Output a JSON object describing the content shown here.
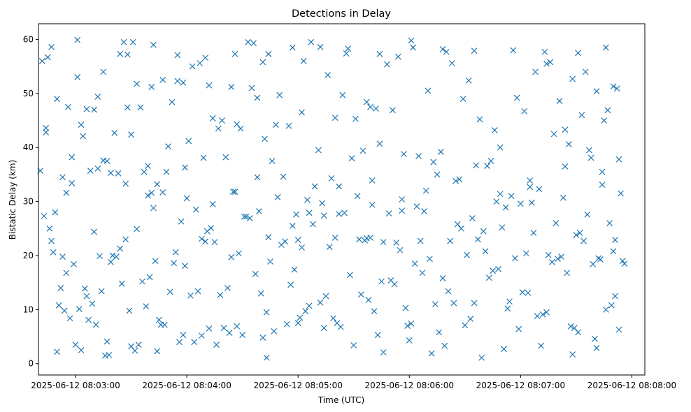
{
  "chart_data": {
    "type": "scatter",
    "title": "Detections in Delay",
    "xlabel": "Time (UTC)",
    "ylabel": "Bistatic Delay (km)",
    "x_ticks": [
      "2025-06-12 08:03:00",
      "2025-06-12 08:04:00",
      "2025-06-12 08:05:00",
      "2025-06-12 08:06:00",
      "2025-06-12 08:07:00",
      "2025-06-12 08:08:00"
    ],
    "y_ticks": [
      "0",
      "10",
      "20",
      "30",
      "40",
      "50",
      "60"
    ],
    "xlim": [
      "2025-06-12 08:02:40",
      "2025-06-12 08:08:07"
    ],
    "ylim": [
      -2.1,
      62.9
    ],
    "grid": false,
    "marker": "x",
    "series_color": "#1f77b4",
    "series": [
      {
        "x": [
          "08:02:42",
          "08:02:44",
          "08:02:50",
          "08:02:56",
          "08:03:03",
          "08:03:10",
          "08:03:19",
          "08:03:24",
          "08:03:31",
          "08:03:35",
          "08:03:41",
          "08:03:52",
          "08:03:58",
          "08:04:03",
          "08:04:12",
          "08:04:19",
          "08:04:27",
          "08:04:33",
          "08:04:38",
          "08:04:44",
          "08:04:50",
          "08:05:02",
          "08:05:07",
          "08:05:16",
          "08:05:20",
          "08:05:26",
          "08:05:37",
          "08:05:44",
          "08:05:48",
          "08:05:54",
          "08:06:10",
          "08:06:23",
          "08:06:29",
          "08:06:42",
          "08:06:49",
          "08:06:58",
          "08:07:08",
          "08:07:16",
          "08:07:21",
          "08:07:28",
          "08:07:33",
          "08:07:41",
          "08:07:50",
          "08:02:45",
          "08:02:53",
          "08:03:01",
          "08:03:06",
          "08:03:15",
          "08:03:26",
          "08:03:33",
          "08:03:39",
          "08:03:47",
          "08:03:55",
          "08:04:07",
          "08:04:14",
          "08:04:24",
          "08:04:29",
          "08:04:36",
          "08:04:48",
          "08:04:55",
          "08:05:03",
          "08:05:11",
          "08:05:24",
          "08:05:31",
          "08:05:39",
          "08:05:51",
          "08:06:02",
          "08:06:13",
          "08:06:20",
          "08:06:32",
          "08:06:38",
          "08:06:46",
          "08:06:55",
          "08:07:02",
          "08:07:13",
          "08:07:24",
          "08:07:35",
          "08:07:45",
          "08:07:52",
          "08:02:43",
          "08:02:49",
          "08:02:58",
          "08:03:04",
          "08:03:12",
          "08:03:21",
          "08:03:28",
          "08:03:37",
          "08:03:44",
          "08:03:50",
          "08:04:01",
          "08:04:09",
          "08:04:17",
          "08:04:26",
          "08:04:35",
          "08:04:42",
          "08:04:52",
          "08:04:59",
          "08:05:09",
          "08:05:18",
          "08:05:29",
          "08:05:35",
          "08:05:42",
          "08:05:57",
          "08:06:05",
          "08:06:17",
          "08:06:27",
          "08:06:36",
          "08:06:44",
          "08:06:52",
          "08:07:05",
          "08:07:18",
          "08:07:26",
          "08:07:38",
          "08:07:47",
          "08:07:54",
          "08:02:46",
          "08:02:55",
          "08:03:08",
          "08:03:17",
          "08:03:23",
          "08:03:30",
          "08:03:42",
          "08:03:49",
          "08:04:05",
          "08:04:11",
          "08:04:21",
          "08:04:31",
          "08:04:39",
          "08:04:46",
          "08:04:57",
          "08:05:05",
          "08:05:13",
          "08:05:22",
          "08:05:33",
          "08:05:40",
          "08:05:46",
          "08:05:56",
          "08:06:08",
          "08:06:15",
          "08:06:25",
          "08:06:34",
          "08:06:40",
          "08:06:50",
          "08:07:00",
          "08:07:10",
          "08:07:19",
          "08:07:30",
          "08:07:37",
          "08:07:44",
          "08:07:53",
          "08:02:47",
          "08:02:59",
          "08:03:13",
          "08:03:27",
          "08:03:43",
          "08:03:57",
          "08:04:15",
          "08:04:34",
          "08:04:53",
          "08:05:14",
          "08:05:32",
          "08:05:53",
          "08:06:11",
          "08:06:31",
          "08:06:48",
          "08:07:06",
          "08:07:23",
          "08:07:42",
          "08:02:48",
          "08:03:05",
          "08:03:20",
          "08:03:36",
          "08:03:53",
          "08:04:10",
          "08:04:28",
          "08:04:45",
          "08:05:00",
          "08:05:17",
          "08:05:36",
          "08:05:55",
          "08:06:18",
          "08:06:37",
          "08:06:57",
          "08:07:15",
          "08:07:32",
          "08:07:48",
          "08:02:52",
          "08:03:09",
          "08:03:22",
          "08:03:40",
          "08:03:59",
          "08:04:18",
          "08:04:37",
          "08:04:56",
          "08:05:12",
          "08:05:28",
          "08:05:45",
          "08:06:03",
          "08:06:21",
          "08:06:41",
          "08:07:01",
          "08:07:20",
          "08:07:39",
          "08:07:55",
          "08:02:51",
          "08:03:02",
          "08:03:14",
          "08:03:25",
          "08:03:38",
          "08:03:51",
          "08:04:06",
          "08:04:22",
          "08:04:40",
          "08:04:58",
          "08:05:15",
          "08:05:34",
          "08:05:52",
          "08:06:07",
          "08:06:24",
          "08:06:45",
          "08:07:04",
          "08:07:25",
          "08:07:43",
          "08:07:56",
          "08:02:57",
          "08:03:11",
          "08:03:29",
          "08:03:46",
          "08:04:02",
          "08:04:20",
          "08:04:43",
          "08:05:01",
          "08:05:19",
          "08:05:38",
          "08:05:58",
          "08:06:14",
          "08:06:33",
          "08:06:53",
          "08:07:12",
          "08:07:29",
          "08:07:46",
          "08:02:54",
          "08:03:07",
          "08:03:18",
          "08:03:32",
          "08:03:45",
          "08:03:56",
          "08:04:08",
          "08:04:23",
          "08:04:41",
          "08:04:54",
          "08:05:06",
          "08:05:21",
          "08:05:41",
          "08:05:59",
          "08:06:16",
          "08:06:35",
          "08:06:54",
          "08:07:09",
          "08:07:27",
          "08:07:40",
          "08:07:51",
          "08:03:00",
          "08:03:16",
          "08:03:34",
          "08:03:48",
          "08:04:04",
          "08:04:16",
          "08:04:30",
          "08:04:47",
          "08:05:04",
          "08:05:23",
          "08:05:43",
          "08:06:01",
          "08:06:19",
          "08:06:39",
          "08:06:59",
          "08:07:14",
          "08:07:31",
          "08:07:49",
          "08:02:41",
          "08:02:53",
          "08:03:06",
          "08:03:19",
          "08:03:33",
          "08:03:47",
          "08:04:00",
          "08:04:13",
          "08:04:25",
          "08:04:38",
          "08:04:51",
          "08:05:08",
          "08:05:25",
          "08:05:39",
          "08:05:50",
          "08:06:04",
          "08:06:22",
          "08:06:43",
          "08:07:03",
          "08:07:17",
          "08:07:34",
          "08:07:51",
          "08:02:44",
          "08:02:58",
          "08:03:10",
          "08:03:24",
          "08:03:39",
          "08:03:54",
          "08:04:08",
          "08:04:24",
          "08:04:44",
          "08:05:02",
          "08:05:20",
          "08:05:37",
          "08:05:49",
          "08:06:06",
          "08:06:26",
          "08:06:47",
          "08:07:07",
          "08:07:22",
          "08:07:36",
          "08:07:50",
          "08:02:50",
          "08:03:03",
          "08:03:17",
          "08:03:30",
          "08:03:44",
          "08:03:58",
          "08:04:12",
          "08:04:27",
          "08:04:43",
          "08:05:00",
          "08:05:14",
          "08:05:30",
          "08:05:46",
          "08:06:00",
          "08:06:12",
          "08:06:30",
          "08:06:51",
          "08:07:11",
          "08:07:28",
          "08:07:41",
          "08:07:53",
          "08:02:47",
          "08:03:01",
          "08:03:15",
          "08:03:28",
          "08:03:42",
          "08:03:55",
          "08:04:10",
          "08:04:26",
          "08:04:41",
          "08:04:57",
          "08:05:12",
          "08:05:27",
          "08:05:44",
          "08:06:01",
          "08:06:18",
          "08:06:35",
          "08:06:56",
          "08:07:14",
          "08:07:31",
          "08:07:46",
          "08:02:55",
          "08:03:12",
          "08:03:27",
          "08:03:41",
          "08:03:59",
          "08:04:14",
          "08:04:32",
          "08:04:49",
          "08:05:06",
          "08:05:22",
          "08:05:40",
          "08:05:56",
          "08:06:09",
          "08:06:28",
          "08:06:49",
          "08:07:05",
          "08:07:24",
          "08:07:44"
        ],
        "y": [
          56,
          42.8,
          49,
          47.5,
          44.2,
          47,
          35.3,
          57.3,
          59.5,
          47.4,
          51.2,
          48.4,
          52,
          55,
          51.5,
          45,
          44.3,
          59.5,
          49.2,
          57.3,
          49.7,
          46.5,
          59.5,
          53.4,
          45.5,
          57.4,
          48.4,
          40.7,
          55.4,
          56.8,
          50.5,
          55.6,
          49,
          36.6,
          40,
          49.2,
          54,
          55.8,
          48.6,
          52.7,
          46,
          50.4,
          51.3,
          56.7,
          34.5,
          53,
          47.1,
          37.6,
          59.5,
          51.8,
          36.6,
          52.5,
          57.1,
          55.6,
          45.4,
          51.2,
          43.5,
          59.3,
          44.2,
          44,
          56,
          39.5,
          49.7,
          45.3,
          47.5,
          46.9,
          58.5,
          37.3,
          57.7,
          52.4,
          45.2,
          43.2,
          31,
          46.7,
          57.7,
          43.3,
          54,
          45,
          50.9,
          27.3,
          28,
          33.4,
          42.1,
          49.4,
          42.7,
          47.4,
          35.5,
          33.2,
          40.2,
          41.2,
          38.1,
          43.5,
          31.8,
          51,
          41.6,
          34.6,
          27.6,
          32.8,
          34.3,
          38,
          39.4,
          47.2,
          38.8,
          38.4,
          39.2,
          34.1,
          36.7,
          37.5,
          28.9,
          32.7,
          42.5,
          40.6,
          38.1,
          46.9,
          31.5,
          25,
          16.8,
          35.7,
          37.5,
          35.2,
          42.4,
          28.8,
          35.5,
          28.5,
          24.5,
          38.2,
          27.2,
          28.2,
          37.5,
          25.5,
          30.3,
          29.7,
          27.7,
          23,
          33.9,
          22.5,
          30.4,
          28.2,
          35,
          33.8,
          26.9,
          24.5,
          25.2,
          29.6,
          32.3,
          26,
          23.8,
          39.5,
          35.5,
          37.8,
          22.7,
          18.4,
          19.9,
          23,
          19,
          26.3,
          22.5,
          26.9,
          22.6,
          27.4,
          31,
          22.4,
          19.4,
          20.1,
          17.5,
          29.8,
          30.7,
          19.5,
          20.6,
          13.9,
          20,
          15.2,
          18.6,
          22.6,
          20.4,
          18.9,
          22.9,
          21.6,
          22.8,
          21,
          15.8,
          23,
          19.5,
          20.1,
          24.2,
          26,
          14,
          11.1,
          19.8,
          16,
          18.1,
          12.7,
          16.6,
          14.6,
          11.3,
          16.4,
          15.2,
          18.5,
          13.4,
          20.8,
          13.2,
          19.4,
          18.4,
          19,
          10.8,
          10.1,
          13.4,
          14.8,
          10.6,
          13.3,
          13.4,
          14,
          13,
          17.4,
          12.5,
          12.8,
          14.7,
          16.8,
          11.2,
          17.2,
          13.1,
          16.8,
          19.3,
          18.5,
          8.4,
          7.2,
          9.8,
          7.2,
          12.6,
          6.6,
          9.5,
          8.5,
          8.4,
          11.8,
          10.3,
          11,
          8.3,
          10.2,
          9.1,
          6.6,
          10,
          9.8,
          8.1,
          1.6,
          2.4,
          8.1,
          4,
          5.2,
          5.7,
          4.8,
          7.3,
          10.7,
          7.5,
          9.7,
          7,
          5.8,
          11.2,
          11.5,
          8.8,
          6.9,
          4.6,
          12.5,
          3.5,
          1.5,
          3.5,
          7.2,
          4,
          3.5,
          5.3,
          6,
          9.7,
          6.8,
          5.3,
          7.4,
          3.3,
          1.1,
          6.4,
          9.5,
          5.8,
          10.8,
          35.7,
          19.8,
          12.5,
          18.8,
          24.9,
          31.7,
          30.6,
          25.1,
          31.8,
          34.5,
          22,
          25.8,
          27.9,
          23.3,
          15.4,
          29.1,
          22.7,
          15.9,
          20.4,
          18.8,
          22.7,
          22.9,
          43.6,
          38.2,
          24.4,
          21.3,
          31.1,
          20.6,
          23.1,
          19.7,
          23.4,
          21.5,
          23.3,
          23.2,
          27.8,
          22.7,
          25.8,
          30,
          24.2,
          19.8,
          27.6,
          20.8,
          2.2,
          2.5,
          4.1,
          3.2,
          2.3,
          5.3,
          6.5,
          6.9,
          1.1,
          7.5,
          6.6,
          3.4,
          2.1,
          4.3,
          1.9,
          7.1,
          2.7,
          3.3,
          1.7,
          2.9,
          6.3,
          58.6,
          59.9,
          54,
          57.2,
          59,
          52.3,
          56.6,
          57.3,
          55.8,
          58.5,
          58.6,
          58.3,
          57.3,
          59.8,
          58.2,
          57.9,
          58,
          55.5,
          57.5,
          58.5,
          31.6,
          36.1,
          33.3,
          31.6,
          36.3,
          29.5,
          27.2,
          30.8,
          27.9,
          32.8,
          29.4,
          28.3,
          32,
          25,
          31.4,
          33.9,
          36.5,
          33.1
        ]
      }
    ]
  }
}
